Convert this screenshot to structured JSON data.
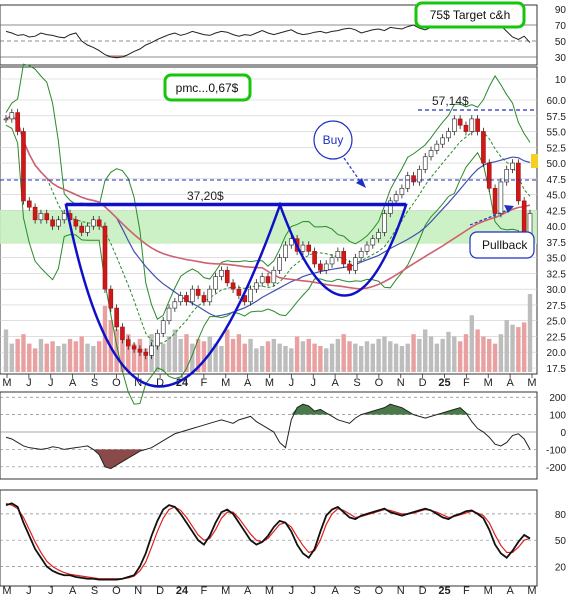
{
  "annotations": {
    "target": "75$ Target c&h",
    "pmc": "pmc...0,67$",
    "high_label": "57,14$",
    "neckline_label": "37,20$",
    "buy": "Buy",
    "pullback": "Pullback"
  },
  "colors": {
    "annotation_green": "#16c60c",
    "cup_blue": "#1010c8",
    "bull_green": "#5a8a5a",
    "bear_red": "#a06060",
    "ema_red": "#e02020",
    "bollinger": "#2a8a2a",
    "ma_blue": "#4050b0",
    "ma_pink": "#d06070",
    "band_fill": "#c8f0c0"
  },
  "chart_data": [
    {
      "type": "line",
      "panel": "RSI",
      "yticks": [
        "90",
        "70",
        "50",
        "30"
      ],
      "ylim": [
        20,
        95
      ],
      "reference_lines": [
        70,
        50,
        30
      ],
      "values": [
        62,
        60,
        57,
        58,
        55,
        56,
        60,
        58,
        57,
        55,
        54,
        58,
        60,
        50,
        45,
        42,
        38,
        33,
        30,
        29,
        30,
        33,
        37,
        40,
        45,
        48,
        52,
        55,
        58,
        60,
        57,
        59,
        62,
        60,
        58,
        57,
        60,
        62,
        61,
        58,
        56,
        58,
        57,
        60,
        63,
        60,
        58,
        60,
        62,
        64,
        60,
        58,
        59,
        61,
        62,
        60,
        62,
        63,
        65,
        66,
        64,
        60,
        62,
        64,
        65,
        63,
        67,
        66,
        65,
        68,
        70,
        66,
        64,
        67,
        68,
        72,
        70,
        71,
        73,
        69,
        67,
        70,
        68,
        72,
        71,
        69,
        62,
        55,
        52,
        56,
        48
      ]
    },
    {
      "type": "candlestick",
      "panel": "price",
      "yticks": [
        "10",
        "60.0",
        "57.5",
        "55.0",
        "52.5",
        "50.0",
        "47.5",
        "45.0",
        "42.5",
        "40.0",
        "37.5",
        "35.0",
        "32.5",
        "30.0",
        "27.5",
        "25.0",
        "22.5",
        "20.0",
        "17.5"
      ],
      "ylim": [
        17.5,
        60
      ],
      "x_tick_labels": [
        "M",
        "J",
        "J",
        "A",
        "S",
        "O",
        "N",
        "D",
        "24",
        "F",
        "M",
        "A",
        "M",
        "J",
        "J",
        "A",
        "S",
        "O",
        "N",
        "D",
        "25",
        "F",
        "M",
        "A",
        "M"
      ],
      "levels": {
        "high": 57.14,
        "neckline": 37.2,
        "support": 42.5
      },
      "close": [
        57,
        58,
        55,
        44,
        43,
        41,
        42,
        41,
        40,
        41,
        42,
        41,
        40,
        39,
        40,
        41,
        40,
        30,
        27,
        24,
        22,
        21,
        20.5,
        20,
        19.5,
        21,
        23,
        25,
        27,
        28,
        29,
        28,
        30,
        29,
        28,
        30,
        32,
        33,
        31,
        30,
        29,
        28,
        30,
        31,
        32,
        31,
        33,
        35,
        37,
        38,
        36,
        37,
        36,
        34,
        33,
        34,
        35,
        36,
        34,
        33,
        35,
        36,
        37,
        38,
        39,
        42,
        44,
        45,
        46,
        48,
        47,
        49,
        51,
        52,
        53,
        54,
        55,
        57,
        56,
        55,
        57,
        55,
        50,
        46,
        42,
        47,
        49,
        50,
        44,
        38,
        42
      ],
      "volume": [
        18,
        12,
        14,
        16,
        12,
        10,
        14,
        12,
        13,
        11,
        12,
        14,
        13,
        15,
        12,
        11,
        13,
        28,
        22,
        18,
        14,
        16,
        12,
        14,
        10,
        16,
        14,
        12,
        15,
        18,
        14,
        16,
        12,
        14,
        13,
        15,
        12,
        11,
        18,
        14,
        16,
        12,
        14,
        10,
        11,
        13,
        14,
        12,
        11,
        10,
        15,
        13,
        14,
        12,
        11,
        10,
        12,
        14,
        16,
        13,
        12,
        11,
        13,
        12,
        14,
        15,
        13,
        12,
        11,
        12,
        16,
        14,
        18,
        15,
        12,
        14,
        17,
        15,
        13,
        16,
        24,
        18,
        15,
        14,
        12,
        16,
        22,
        20,
        19,
        21,
        33
      ]
    },
    {
      "type": "area",
      "panel": "momentum",
      "yticks": [
        "200",
        "100",
        "0",
        "-100",
        "-200"
      ],
      "ylim": [
        -270,
        230
      ],
      "reference_lines": [
        200,
        100,
        0,
        -100,
        -200
      ],
      "values": [
        -30,
        -40,
        -60,
        -80,
        -90,
        -95,
        -100,
        -95,
        -85,
        -90,
        -100,
        -95,
        -90,
        -85,
        -80,
        -100,
        -130,
        -200,
        -210,
        -190,
        -170,
        -150,
        -130,
        -110,
        -100,
        -90,
        -70,
        -50,
        -30,
        -10,
        0,
        10,
        20,
        30,
        40,
        50,
        60,
        70,
        60,
        50,
        70,
        80,
        90,
        60,
        40,
        20,
        0,
        -60,
        -90,
        70,
        140,
        160,
        150,
        120,
        130,
        110,
        90,
        70,
        60,
        50,
        80,
        100,
        110,
        120,
        130,
        140,
        160,
        150,
        140,
        120,
        100,
        90,
        80,
        90,
        100,
        110,
        120,
        130,
        140,
        110,
        60,
        20,
        0,
        -30,
        -70,
        -80,
        -60,
        -20,
        -10,
        -40,
        -100
      ]
    },
    {
      "type": "line",
      "panel": "stochastic",
      "yticks": [
        "80",
        "50",
        "20"
      ],
      "ylim": [
        0,
        105
      ],
      "reference_lines": [
        80,
        50,
        20
      ],
      "series": [
        {
          "values": [
            90,
            92,
            88,
            70,
            55,
            40,
            30,
            20,
            15,
            12,
            10,
            10,
            8,
            7,
            6,
            6,
            5,
            5,
            5,
            5,
            6,
            8,
            10,
            20,
            35,
            55,
            72,
            85,
            90,
            88,
            80,
            70,
            60,
            50,
            45,
            55,
            70,
            82,
            85,
            80,
            70,
            60,
            50,
            45,
            48,
            55,
            65,
            72,
            70,
            60,
            45,
            35,
            30,
            40,
            60,
            78,
            85,
            88,
            82,
            76,
            74,
            78,
            80,
            82,
            84,
            86,
            82,
            80,
            78,
            80,
            82,
            84,
            86,
            84,
            80,
            76,
            74,
            78,
            80,
            83,
            84,
            80,
            75,
            62,
            45,
            35,
            30,
            38,
            48,
            56,
            52
          ]
        },
        {
          "values": [
            92,
            90,
            86,
            76,
            62,
            48,
            36,
            26,
            20,
            16,
            13,
            11,
            10,
            9,
            8,
            7,
            6,
            6,
            6,
            6,
            6,
            7,
            9,
            15,
            25,
            42,
            60,
            75,
            85,
            88,
            84,
            76,
            66,
            56,
            50,
            52,
            62,
            75,
            82,
            82,
            75,
            66,
            57,
            50,
            48,
            52,
            60,
            68,
            70,
            65,
            54,
            44,
            36,
            38,
            50,
            68,
            80,
            86,
            84,
            80,
            76,
            77,
            79,
            81,
            83,
            85,
            84,
            82,
            80,
            80,
            81,
            83,
            85,
            84,
            82,
            79,
            76,
            77,
            79,
            81,
            83,
            81,
            78,
            70,
            56,
            44,
            36,
            36,
            42,
            50,
            52
          ]
        }
      ]
    }
  ]
}
